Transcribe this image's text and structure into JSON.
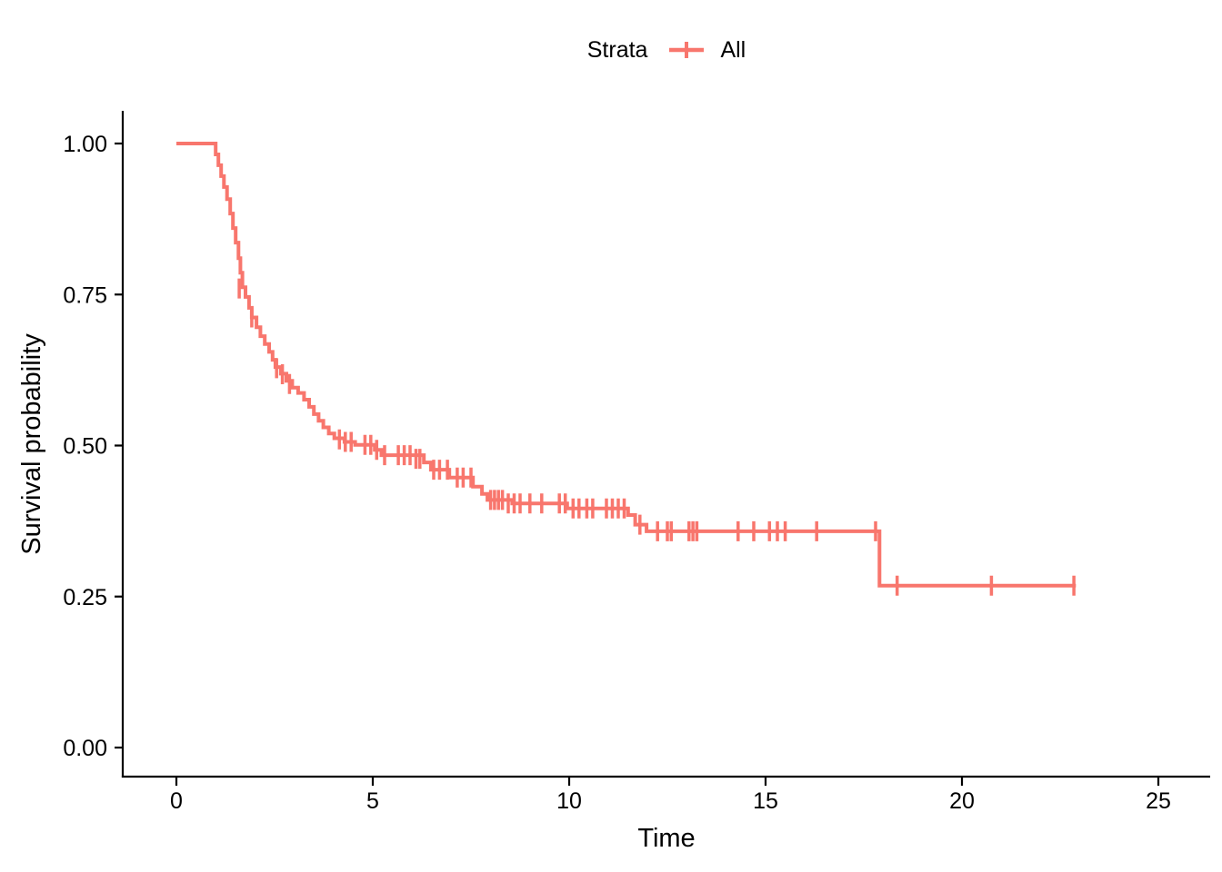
{
  "chart_data": {
    "type": "line",
    "subtype": "kaplan-meier-step-curve",
    "legend": {
      "title": "Strata",
      "position": "top",
      "entries": [
        {
          "label": "All",
          "color": "#F8766D",
          "key_icon": "censor-plus-icon"
        }
      ]
    },
    "xlabel": "Time",
    "ylabel": "Survival probability",
    "xlim": [
      0,
      25
    ],
    "ylim": [
      0,
      1
    ],
    "x_ticks": [
      0,
      5,
      10,
      15,
      20,
      25
    ],
    "y_ticks": [
      "0.00",
      "0.25",
      "0.50",
      "0.75",
      "1.00"
    ],
    "grid": false,
    "series": [
      {
        "name": "All",
        "color": "#F8766D",
        "start": [
          0,
          1.0
        ],
        "end_time": 22.9,
        "steps": [
          [
            1.0,
            0.982
          ],
          [
            1.07,
            0.964
          ],
          [
            1.14,
            0.946
          ],
          [
            1.21,
            0.928
          ],
          [
            1.29,
            0.908
          ],
          [
            1.37,
            0.884
          ],
          [
            1.44,
            0.86
          ],
          [
            1.51,
            0.836
          ],
          [
            1.58,
            0.81
          ],
          [
            1.63,
            0.786
          ],
          [
            1.68,
            0.762
          ],
          [
            1.76,
            0.746
          ],
          [
            1.85,
            0.728
          ],
          [
            1.92,
            0.712
          ],
          [
            2.04,
            0.696
          ],
          [
            2.14,
            0.681
          ],
          [
            2.25,
            0.668
          ],
          [
            2.36,
            0.655
          ],
          [
            2.45,
            0.642
          ],
          [
            2.52,
            0.63
          ],
          [
            2.66,
            0.619
          ],
          [
            2.8,
            0.607
          ],
          [
            2.95,
            0.596
          ],
          [
            3.1,
            0.587
          ],
          [
            3.25,
            0.576
          ],
          [
            3.38,
            0.564
          ],
          [
            3.5,
            0.552
          ],
          [
            3.62,
            0.541
          ],
          [
            3.74,
            0.53
          ],
          [
            3.88,
            0.52
          ],
          [
            4.02,
            0.512
          ],
          [
            4.28,
            0.506
          ],
          [
            4.55,
            0.501
          ],
          [
            5.05,
            0.493
          ],
          [
            5.22,
            0.484
          ],
          [
            6.3,
            0.472
          ],
          [
            6.48,
            0.46
          ],
          [
            6.95,
            0.447
          ],
          [
            7.55,
            0.432
          ],
          [
            7.78,
            0.42
          ],
          [
            7.92,
            0.41
          ],
          [
            8.55,
            0.404
          ],
          [
            9.95,
            0.396
          ],
          [
            11.5,
            0.385
          ],
          [
            11.68,
            0.369
          ],
          [
            11.97,
            0.358
          ],
          [
            17.9,
            0.268
          ]
        ],
        "censors": [
          [
            1.6,
            0.76
          ],
          [
            1.92,
            0.712
          ],
          [
            2.55,
            0.628
          ],
          [
            2.7,
            0.618
          ],
          [
            2.88,
            0.602
          ],
          [
            4.15,
            0.51
          ],
          [
            4.3,
            0.506
          ],
          [
            4.45,
            0.506
          ],
          [
            4.8,
            0.501
          ],
          [
            4.95,
            0.501
          ],
          [
            5.1,
            0.493
          ],
          [
            5.3,
            0.484
          ],
          [
            5.65,
            0.484
          ],
          [
            5.8,
            0.484
          ],
          [
            5.95,
            0.484
          ],
          [
            6.1,
            0.478
          ],
          [
            6.2,
            0.478
          ],
          [
            6.55,
            0.46
          ],
          [
            6.7,
            0.46
          ],
          [
            6.9,
            0.46
          ],
          [
            7.15,
            0.447
          ],
          [
            7.3,
            0.447
          ],
          [
            7.5,
            0.447
          ],
          [
            8.0,
            0.41
          ],
          [
            8.1,
            0.41
          ],
          [
            8.2,
            0.41
          ],
          [
            8.3,
            0.41
          ],
          [
            8.45,
            0.404
          ],
          [
            8.6,
            0.404
          ],
          [
            8.75,
            0.404
          ],
          [
            9.0,
            0.404
          ],
          [
            9.3,
            0.404
          ],
          [
            9.75,
            0.404
          ],
          [
            9.9,
            0.404
          ],
          [
            10.1,
            0.396
          ],
          [
            10.25,
            0.396
          ],
          [
            10.45,
            0.396
          ],
          [
            10.6,
            0.396
          ],
          [
            10.95,
            0.396
          ],
          [
            11.1,
            0.396
          ],
          [
            11.25,
            0.396
          ],
          [
            11.4,
            0.396
          ],
          [
            11.8,
            0.369
          ],
          [
            12.25,
            0.358
          ],
          [
            12.5,
            0.358
          ],
          [
            12.6,
            0.358
          ],
          [
            13.05,
            0.358
          ],
          [
            13.15,
            0.358
          ],
          [
            13.25,
            0.358
          ],
          [
            14.3,
            0.358
          ],
          [
            14.7,
            0.358
          ],
          [
            15.1,
            0.358
          ],
          [
            15.3,
            0.358
          ],
          [
            15.5,
            0.358
          ],
          [
            16.3,
            0.358
          ],
          [
            17.8,
            0.358
          ],
          [
            18.35,
            0.268
          ],
          [
            20.75,
            0.268
          ],
          [
            22.85,
            0.268
          ]
        ]
      }
    ]
  },
  "colors": {
    "curve": "#F8766D",
    "axis": "#000000",
    "text": "#000000",
    "background": "#FFFFFF"
  }
}
